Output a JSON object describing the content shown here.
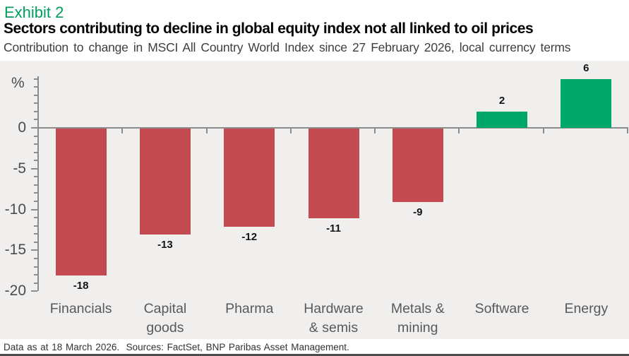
{
  "header": {
    "exhibit_label": "Exhibit 2"
  },
  "footer": {
    "text": "Data as at 18 March 2026.  Sources: FactSet, BNP Paribas Asset Management."
  },
  "colors": {
    "exhibit_green": "#009e5c",
    "negative_bar_red": "#c44a52",
    "positive_bar_green": "#00a76b",
    "plot_background": "#f0efee",
    "axis_gray": "#8c8c8c"
  },
  "chart_data": {
    "type": "bar",
    "title": "Sectors contributing to decline in global equity index not all linked to oil prices",
    "subtitle": "Contribution to change in MSCI All Country World Index since 27 February 2026, local currency terms",
    "categories": [
      "Financials",
      "Capital goods",
      "Pharma",
      "Hardware & semis",
      "Metals & mining",
      "Software",
      "Energy"
    ],
    "category_label_lines": [
      [
        "Financials"
      ],
      [
        "Capital",
        "goods"
      ],
      [
        "Pharma"
      ],
      [
        "Hardware",
        "& semis"
      ],
      [
        "Metals &",
        "mining"
      ],
      [
        "Software"
      ],
      [
        "Energy"
      ]
    ],
    "values": [
      -18,
      -13,
      -12,
      -11,
      -9,
      2,
      6
    ],
    "data_labels": [
      "-18",
      "-13",
      "-12",
      "-11",
      "-9",
      "2",
      "6"
    ],
    "ylabel": "%",
    "yticks": [
      0,
      -5,
      -10,
      -15,
      -20
    ],
    "ytick_labels": [
      "0",
      "-5",
      "-10",
      "-15",
      "-20"
    ],
    "minor_tick_step": 1,
    "ylim": [
      -20,
      6.4
    ],
    "grid": false,
    "legend": false,
    "bar_colors": {
      "negative": "#c44a52",
      "positive": "#00a76b"
    }
  }
}
